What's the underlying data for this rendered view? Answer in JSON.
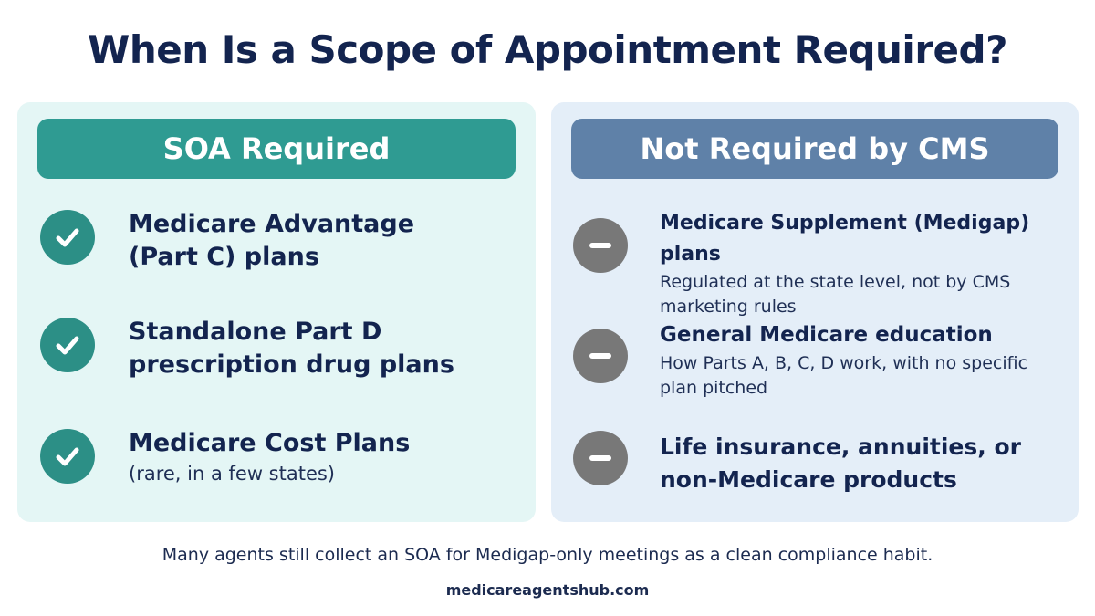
{
  "title": "When Is a Scope of Appointment Required?",
  "required": {
    "header": "SOA Required",
    "items": [
      {
        "icon": "check-icon",
        "primary_line1": "Medicare Advantage",
        "primary_line2": "(Part C) plans"
      },
      {
        "icon": "check-icon",
        "primary_line1": "Standalone Part D",
        "primary_line2": "prescription drug plans"
      },
      {
        "icon": "check-icon",
        "primary_line1": "Medicare Cost Plans",
        "secondary": "(rare, in a few states)"
      }
    ]
  },
  "not_required": {
    "header": "Not Required by CMS",
    "items": [
      {
        "icon": "minus-icon",
        "primary_line1": "Medicare Supplement (Medigap) plans",
        "secondary_line1": "Regulated at the state level, not by CMS",
        "secondary_line2": "marketing rules"
      },
      {
        "icon": "minus-icon",
        "primary_line1": "General Medicare education",
        "secondary_line1": "How Parts A, B, C, D work, with no specific",
        "secondary_line2": "plan pitched"
      },
      {
        "icon": "minus-icon",
        "primary_line1": "Life insurance, annuities, or",
        "primary_line2": "non-Medicare products"
      }
    ]
  },
  "footnote": "Many agents still collect an SOA for Medigap-only meetings as a clean compliance habit.",
  "site": "medicareagentshub.com",
  "colors": {
    "title": "#13244f",
    "required_panel": "#e4f6f5",
    "required_header": "#2f9b92",
    "check_badge": "#2c8f86",
    "not_required_panel": "#e4eef8",
    "not_required_header": "#5f81a8",
    "minus_badge": "#787878"
  }
}
